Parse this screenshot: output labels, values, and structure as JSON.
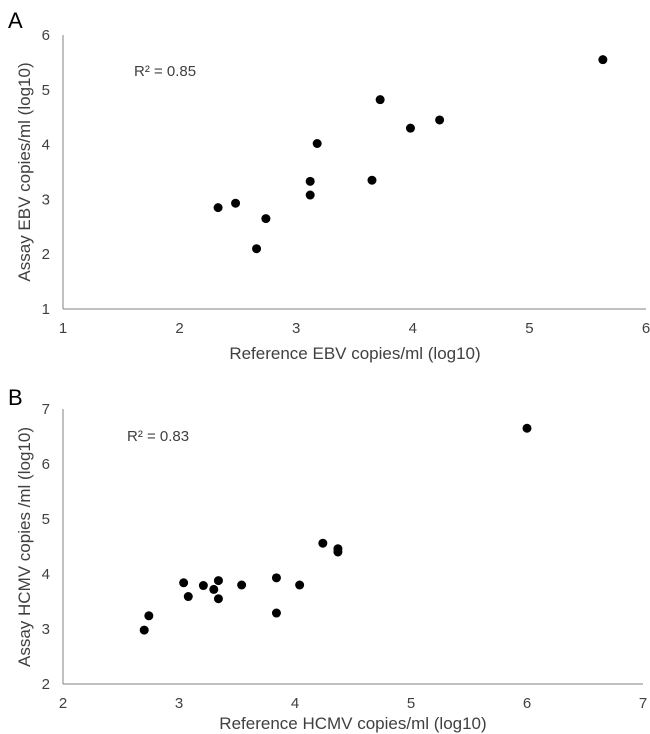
{
  "chart_data": [
    {
      "type": "scatter",
      "panel_label": "A",
      "annotation": "R² = 0.85",
      "xlabel": "Reference EBV copies/ml (log10)",
      "ylabel": "Assay EBV copies/ml (log10)",
      "xlim": [
        1,
        6
      ],
      "ylim": [
        1,
        6
      ],
      "xticks": [
        1,
        2,
        3,
        4,
        5,
        6
      ],
      "yticks": [
        1,
        2,
        3,
        4,
        5,
        6
      ],
      "grid": false,
      "color": "#000000",
      "points": [
        {
          "x": 2.33,
          "y": 2.85
        },
        {
          "x": 2.48,
          "y": 2.93
        },
        {
          "x": 2.66,
          "y": 2.1
        },
        {
          "x": 2.74,
          "y": 2.65
        },
        {
          "x": 3.12,
          "y": 3.33
        },
        {
          "x": 3.12,
          "y": 3.08
        },
        {
          "x": 3.18,
          "y": 4.02
        },
        {
          "x": 3.65,
          "y": 3.35
        },
        {
          "x": 3.72,
          "y": 4.82
        },
        {
          "x": 3.98,
          "y": 4.3
        },
        {
          "x": 4.23,
          "y": 4.45
        },
        {
          "x": 5.63,
          "y": 5.55
        }
      ]
    },
    {
      "type": "scatter",
      "panel_label": "B",
      "annotation": "R² = 0.83",
      "xlabel": "Reference HCMV copies/ml (log10)",
      "ylabel": "Assay HCMV copies /ml (log10)",
      "xlim": [
        2,
        7
      ],
      "ylim": [
        2,
        7
      ],
      "xticks": [
        2,
        3,
        4,
        5,
        6,
        7
      ],
      "yticks": [
        2,
        3,
        4,
        5,
        6,
        7
      ],
      "grid": false,
      "color": "#000000",
      "points": [
        {
          "x": 2.7,
          "y": 2.98
        },
        {
          "x": 2.74,
          "y": 3.24
        },
        {
          "x": 3.04,
          "y": 3.84
        },
        {
          "x": 3.08,
          "y": 3.59
        },
        {
          "x": 3.21,
          "y": 3.79
        },
        {
          "x": 3.3,
          "y": 3.72
        },
        {
          "x": 3.34,
          "y": 3.88
        },
        {
          "x": 3.34,
          "y": 3.55
        },
        {
          "x": 3.54,
          "y": 3.8
        },
        {
          "x": 3.84,
          "y": 3.93
        },
        {
          "x": 3.84,
          "y": 3.29
        },
        {
          "x": 4.04,
          "y": 3.8
        },
        {
          "x": 4.24,
          "y": 4.56
        },
        {
          "x": 4.37,
          "y": 4.46
        },
        {
          "x": 4.37,
          "y": 4.4
        },
        {
          "x": 6.0,
          "y": 6.65
        }
      ]
    }
  ]
}
